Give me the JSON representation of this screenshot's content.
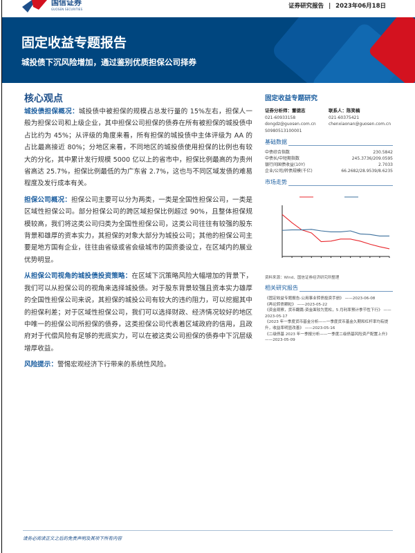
{
  "header": {
    "company_name": "国信证券",
    "company_name_en": "GUOSEN SECURITIES",
    "report_type": "证券研究报告",
    "separator": "|",
    "date": "2023年06月18日"
  },
  "banner": {
    "title": "固定收益专题报告",
    "subtitle": "城投债下沉风险增加，通过鉴别优质担保公司择券"
  },
  "main": {
    "section_title": "核心观点",
    "paragraphs": [
      {
        "lead": "城投债担保概况：",
        "text": "城投债中被担保的规模占总发行量的 15%左右，担保人一般为担保公司和上级企业，其中担保公司担保的债券在所有被担保的城投债中占比约为 45%；从评级的角度来看，所有担保的城投债中主体评级为 AA 的占比最高接近 80%；分地区来看，不同地区的城投债使用担保的比例也有较大的分化，其中累计发行规模 5000 亿以上的省市中，担保比例最高的为贵州省高达 25.7%，担保比例最低的为广东省 2.7%，这也与不同区域发债的难易程度及发行成本有关。"
      },
      {
        "lead": "担保公司概况：",
        "text": "担保公司主要可以分为两类，一类是全国性担保公司，一类是区域性担保公司。部分担保公司的跨区域担保比例超过 90%，且整体担保规模较高，我们将这类公司归类为全国性担保公司，这类公司往往有较强的股东背景和雄厚的资本实力，其担保的对象大部分为城投公司；其他的担保公司主要是地方国有企业，往往由省级或省会级城市的国资委设立，在区域内的展业优势明显。"
      },
      {
        "lead": "从担保公司视角的城投债投资策略：",
        "text": "在区域下沉策略风险大幅增加的背景下，我们可以从担保公司的视角来选择城投债。对于股东背景较强且资本实力雄厚的全国性担保公司来说，其担保的城投公司有较大的违约阻力，可以挖掘其中的担保利差；对于区域性担保公司，我们可以选择财政、经济情况较好的地区中唯一的担保公司所担保的债券，这类担保公司代表着区域政府的信用，且政府对于代偿风险有足够的兜底实力，可以在被这类公司担保的债券中下沉层级增厚收益。"
      },
      {
        "lead": "风险提示：",
        "text": "警惕宏观经济下行带来的系统性风险。"
      }
    ]
  },
  "sidebar": {
    "title": "固定收益专题研究",
    "analyst": {
      "label": "证券分析师：董德志",
      "phone": "021-60933158",
      "email": "dongdz@guosen.com.cn",
      "cert": "S0980513100001"
    },
    "contact": {
      "label": "联系人：陈笑楠",
      "phone": "021-60375421",
      "email": "chenxiaonan@guosen.com.cn"
    },
    "basic_data": {
      "title": "基础数据",
      "rows": [
        {
          "label": "中债综合指数",
          "value": "230.5842"
        },
        {
          "label": "中债长/中短期指数",
          "value": "245.3736/209.0595"
        },
        {
          "label": "银行间国债收益(10Y)",
          "value": "2.7033"
        },
        {
          "label": "企业/公司/转债规模(千亿)",
          "value": "66.2682/28.9539/8.6235"
        }
      ]
    },
    "market": {
      "title": "市场走势",
      "source": "资料来源：Wind、国信证券经济研究所整理"
    },
    "related": {
      "title": "相关研究报告",
      "items": [
        "《固定收益专题报告-公用事业转债投资手册》 ——2023-06-08",
        "《再论转债颗粒》 ——2023-05-22",
        "《资金观察，货币翻篇-资金面较为宽松，5 月利率预计季节性下行》 ——2023-05-17",
        "《2023 年一季度货币基金分析——一季度货币基金久期和杠杆率均有提升，收益率明显改善》 ——2023-05-16",
        "《二级债基 2023 年一季报分析——一季度二级债基风险资产配置上升》 ——2023-05-09"
      ]
    }
  },
  "chart_data": {
    "type": "line",
    "series": [
      {
        "color": "#e8262b",
        "values": [
          8.2,
          6.6,
          5.2,
          4.6,
          2.9,
          3.0,
          3.4,
          3.4,
          3.0,
          2.4,
          1.9,
          1.5
        ]
      },
      {
        "color": "#3b6f9c",
        "values": [
          5.1,
          5.2,
          5.2,
          5.3,
          5.0,
          4.8,
          4.8,
          5.0,
          4.4,
          4.3,
          4.0,
          4.0
        ]
      }
    ],
    "grid": false,
    "legend": "top"
  },
  "footer": {
    "disclaimer": "请务必阅读正文之后的免责声明及其项下所有内容"
  }
}
